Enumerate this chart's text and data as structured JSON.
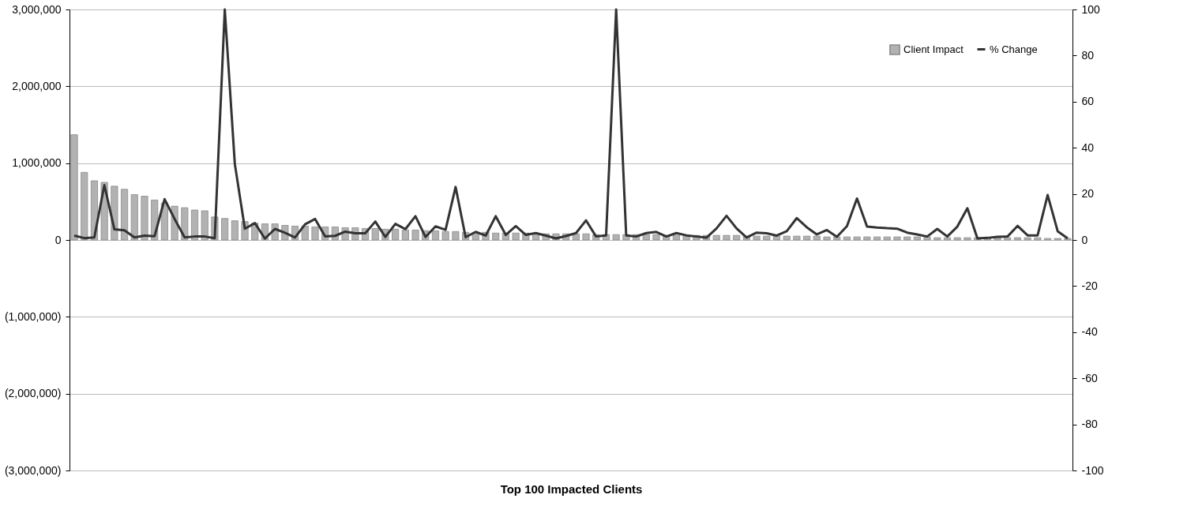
{
  "chart_data": {
    "type": "bar",
    "xlabel": "Top 100 Impacted Clients",
    "categories": [
      null,
      null,
      null,
      null,
      null,
      null,
      null,
      null,
      null,
      null,
      null,
      null,
      null,
      null,
      null,
      null,
      null,
      null,
      null,
      null,
      null,
      null,
      null,
      null,
      null,
      null,
      null,
      null,
      null,
      null,
      null,
      null,
      null,
      null,
      null,
      null,
      null,
      null,
      null,
      null,
      null,
      null,
      null,
      null,
      null,
      null,
      null,
      null,
      null,
      null,
      null,
      null,
      null,
      null,
      null,
      null,
      null,
      null,
      null,
      null,
      null,
      null,
      null,
      null,
      null,
      null,
      null,
      null,
      null,
      null,
      null,
      null,
      null,
      null,
      null,
      null,
      null,
      null,
      null,
      null,
      null,
      null,
      null,
      null,
      null,
      null,
      null,
      null,
      null,
      null,
      null,
      null,
      null,
      null,
      null,
      null,
      null,
      null,
      null,
      null
    ],
    "series": [
      {
        "name": "Client Impact",
        "color": "#b2b2b2",
        "values": [
          1370000,
          880000,
          770000,
          750000,
          700000,
          660000,
          590000,
          570000,
          520000,
          480000,
          440000,
          420000,
          390000,
          380000,
          300000,
          280000,
          250000,
          240000,
          220000,
          210000,
          210000,
          190000,
          180000,
          180000,
          170000,
          170000,
          170000,
          160000,
          160000,
          150000,
          150000,
          140000,
          140000,
          130000,
          130000,
          120000,
          120000,
          110000,
          110000,
          100000,
          100000,
          100000,
          90000,
          90000,
          90000,
          90000,
          80000,
          80000,
          80000,
          80000,
          80000,
          80000,
          70000,
          70000,
          70000,
          70000,
          70000,
          70000,
          70000,
          60000,
          60000,
          60000,
          60000,
          60000,
          60000,
          60000,
          60000,
          50000,
          50000,
          50000,
          50000,
          50000,
          50000,
          50000,
          50000,
          40000,
          40000,
          40000,
          40000,
          40000,
          40000,
          40000,
          40000,
          40000,
          40000,
          40000,
          30000,
          30000,
          30000,
          30000,
          30000,
          30000,
          30000,
          30000,
          30000,
          30000,
          30000,
          20000,
          20000,
          20000
        ]
      },
      {
        "name": "% Change",
        "type": "line",
        "color": "#333333",
        "axis": "y2",
        "values": [
          1.9,
          0.8,
          1.1,
          23.8,
          4.6,
          4.2,
          1.1,
          1.9,
          1.6,
          17.7,
          9.1,
          1.1,
          1.5,
          1.5,
          0.8,
          100,
          33,
          4.9,
          7.3,
          0.6,
          4.8,
          3.1,
          1.1,
          6.8,
          9.1,
          1.5,
          1.8,
          3.6,
          2.9,
          2.9,
          8,
          1.3,
          7,
          4.7,
          10.3,
          1.3,
          5.9,
          4.4,
          23,
          1.2,
          3.5,
          1.9,
          10.3,
          2.2,
          6,
          2.2,
          3,
          1.9,
          0.7,
          1.7,
          3,
          8.5,
          1.5,
          2,
          100,
          2,
          1.5,
          3,
          3.5,
          1.5,
          3,
          2,
          1.5,
          1,
          5,
          10.5,
          5,
          1.1,
          3.2,
          2.9,
          1.9,
          3.8,
          9.5,
          5.5,
          2.4,
          4.3,
          1.4,
          6,
          18,
          5.8,
          5.4,
          5.1,
          4.9,
          3.2,
          2.4,
          1.5,
          4.8,
          1.5,
          5.8,
          13.8,
          0.7,
          0.9,
          1.4,
          1.5,
          6.1,
          2,
          2,
          19.5,
          3.8,
          0.7
        ]
      }
    ],
    "ylim": [
      -3000000,
      3000000
    ],
    "yticks": [
      {
        "value": -3000000,
        "label": "(3,000,000)"
      },
      {
        "value": -2000000,
        "label": "(2,000,000)"
      },
      {
        "value": -1000000,
        "label": "(1,000,000)"
      },
      {
        "value": 0,
        "label": "0"
      },
      {
        "value": 1000000,
        "label": "1,000,000"
      },
      {
        "value": 2000000,
        "label": "2,000,000"
      },
      {
        "value": 3000000,
        "label": "3,000,000"
      }
    ],
    "y2lim": [
      -100,
      100
    ],
    "y2ticks": [
      -100,
      -80,
      -60,
      -40,
      -20,
      0,
      20,
      40,
      60,
      80,
      100
    ],
    "grid": "y",
    "legend": "top right",
    "marker": "none",
    "line_style": "solid"
  }
}
